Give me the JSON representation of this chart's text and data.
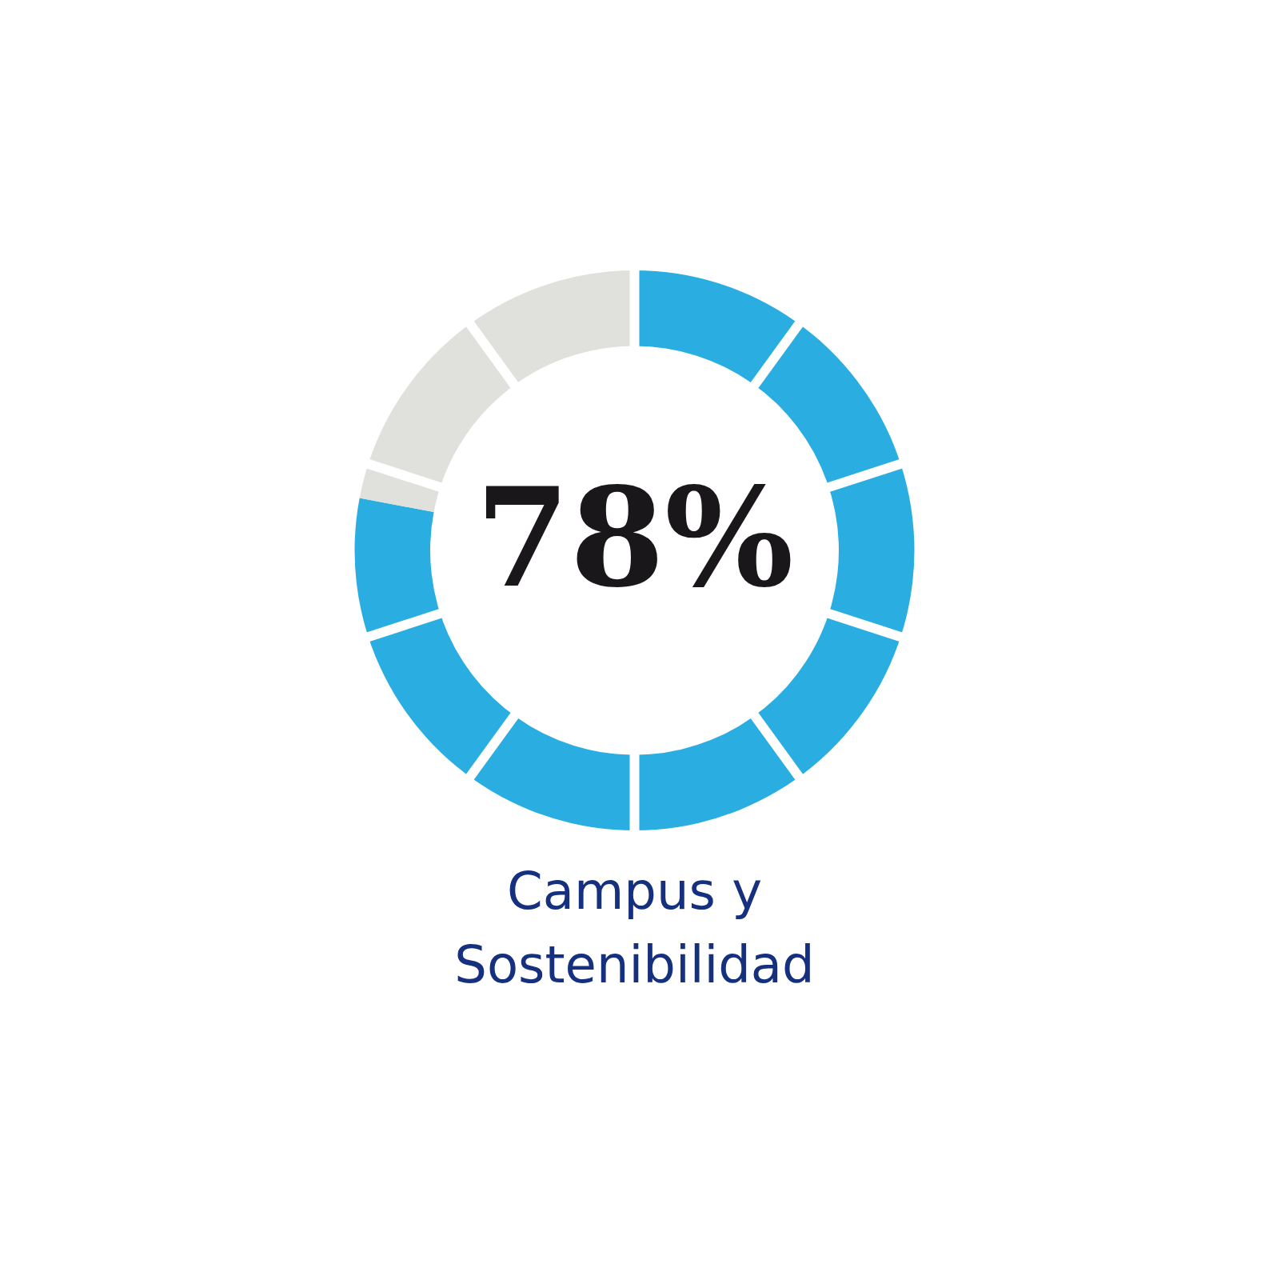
{
  "chart_data": {
    "type": "donut",
    "title": "Campus y Sostenibilidad",
    "categories": [
      null,
      null
    ],
    "values": [
      78,
      22
    ],
    "colors": [
      "#2aaee2",
      "#e0e1dd"
    ],
    "value_labels": [
      "78%",
      null
    ],
    "legend": false
  }
}
